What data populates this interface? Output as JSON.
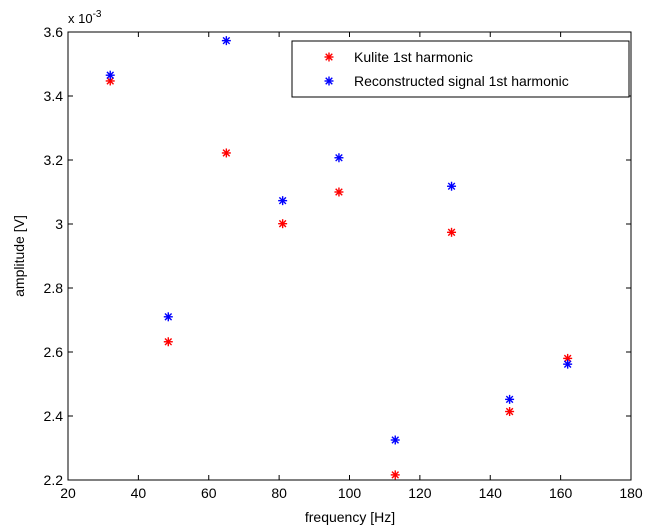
{
  "chart_data": {
    "type": "scatter",
    "title": "",
    "xlabel": "frequency [Hz]",
    "ylabel": "amplitude [V]",
    "xlim": [
      20,
      180
    ],
    "ylim": [
      0.0022,
      0.0036
    ],
    "y_exponent_label": "x 10",
    "y_exponent_power": "-3",
    "x_ticks": [
      20,
      40,
      60,
      80,
      100,
      120,
      140,
      160,
      180
    ],
    "x_tick_labels": [
      "20",
      "40",
      "60",
      "80",
      "100",
      "120",
      "140",
      "160",
      "180"
    ],
    "y_ticks": [
      0.0022,
      0.0024,
      0.0026,
      0.0028,
      0.003,
      0.0032,
      0.0034,
      0.0036
    ],
    "y_tick_labels": [
      "2.2",
      "2.4",
      "2.6",
      "2.8",
      "3",
      "3.2",
      "3.4",
      "3.6"
    ],
    "grid": false,
    "legend_position": "top-right",
    "marker": "*",
    "series": [
      {
        "name": "Kulite 1st harmonic",
        "color": "#ff0000",
        "x": [
          32,
          48.5,
          65,
          81,
          97,
          113,
          129,
          145.5,
          162
        ],
        "y": [
          0.003447,
          0.002632,
          0.003222,
          0.003001,
          0.0031,
          0.002216,
          0.002974,
          0.002414,
          0.00258
        ]
      },
      {
        "name": "Reconstructed signal 1st harmonic",
        "color": "#0000ff",
        "x": [
          32,
          48.5,
          65,
          81,
          97,
          113,
          129,
          145.5,
          162
        ],
        "y": [
          0.003465,
          0.00271,
          0.003573,
          0.003073,
          0.003207,
          0.002325,
          0.003118,
          0.002452,
          0.002562
        ]
      }
    ]
  }
}
